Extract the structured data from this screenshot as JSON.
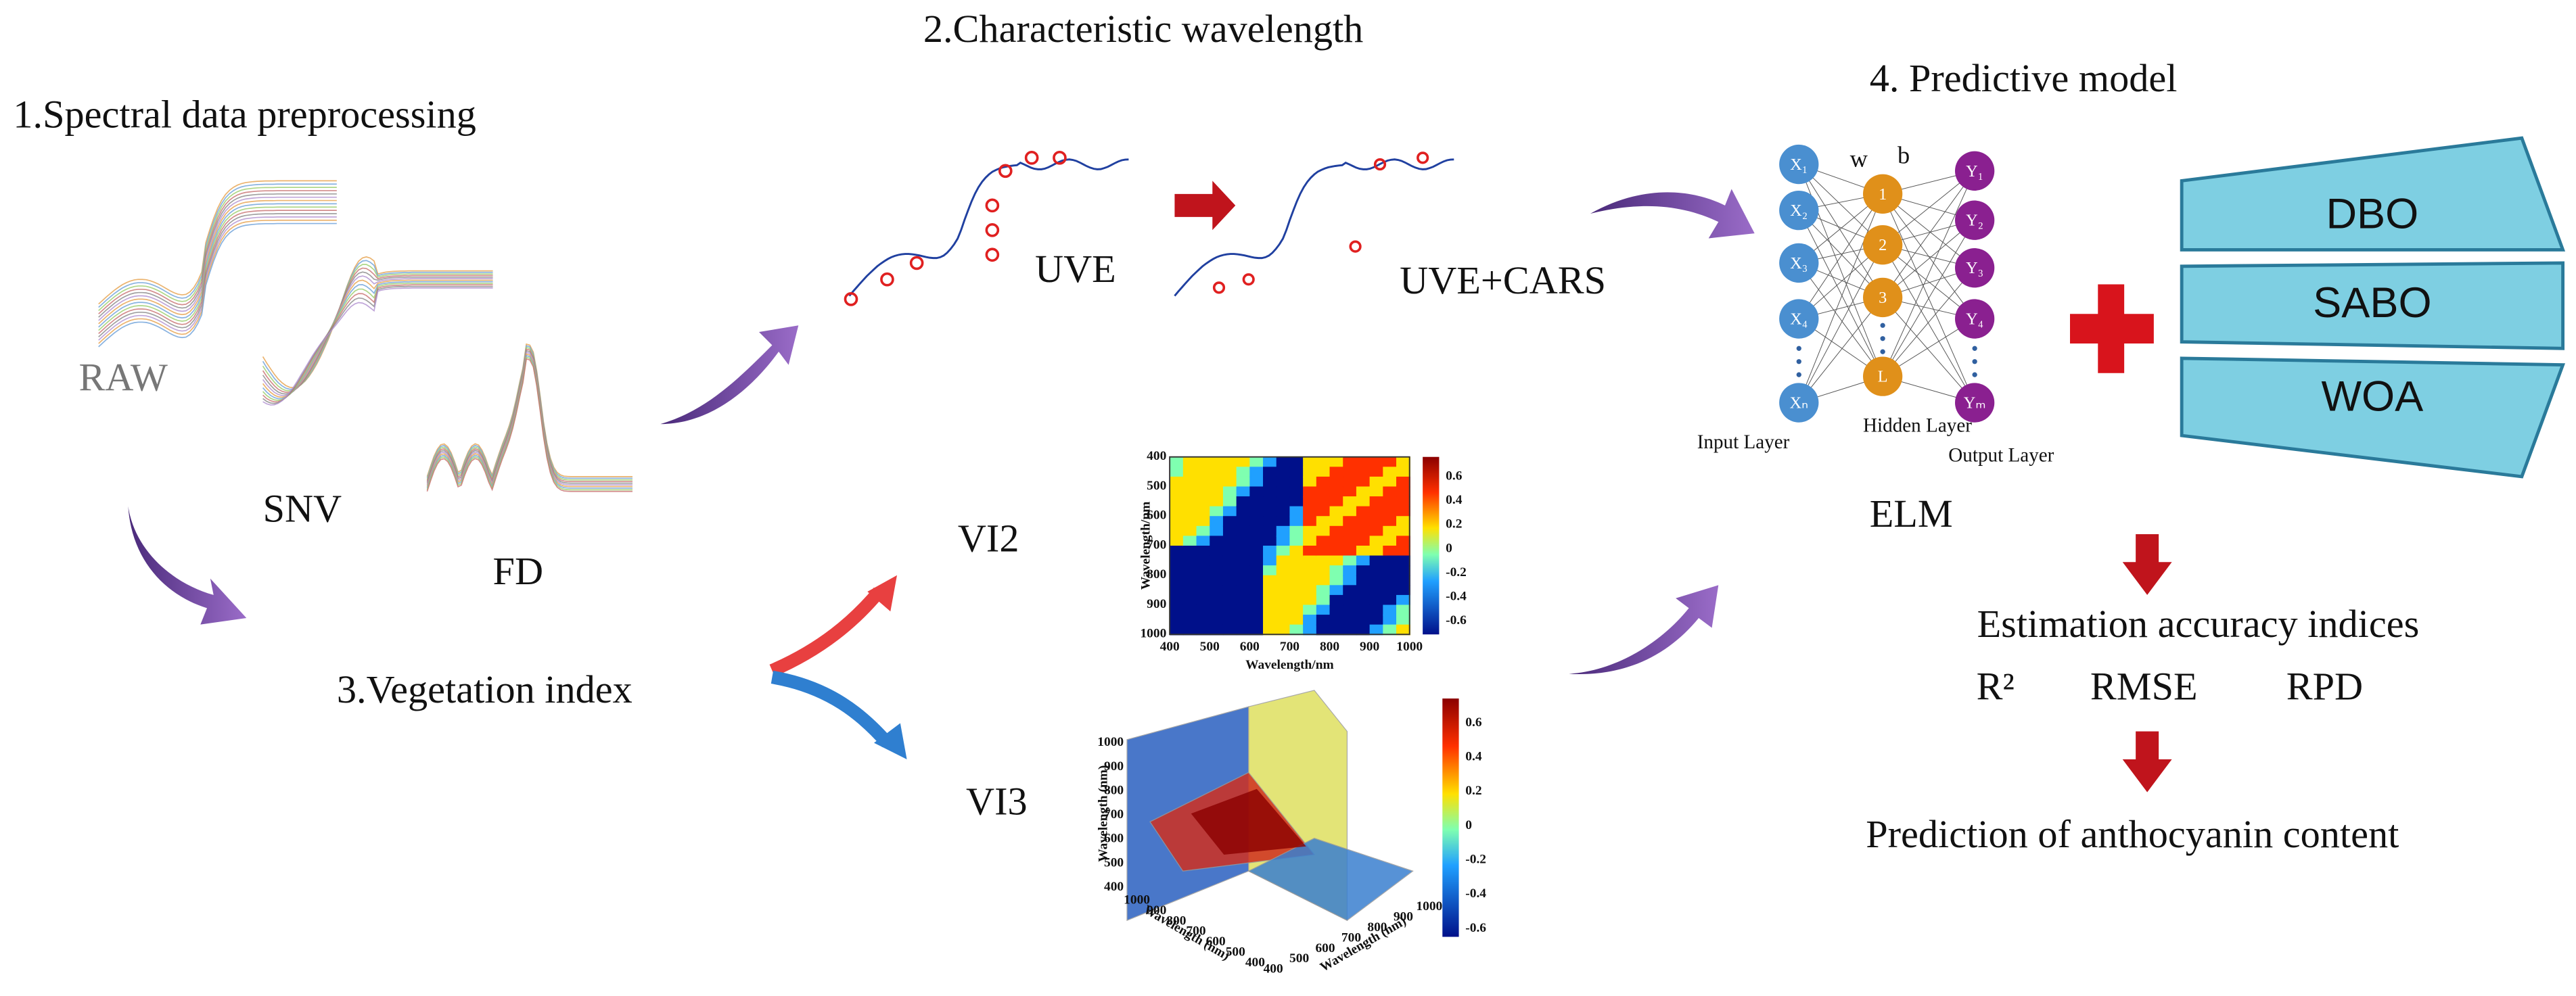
{
  "sections": {
    "preprocessing": "1.Spectral data preprocessing",
    "wavelength": "2.Characteristic wavelength",
    "vegetation": "3.Vegetation index",
    "model": "4. Predictive model"
  },
  "preprocessing": {
    "labels": [
      "RAW",
      "SNV",
      "FD"
    ]
  },
  "wavelength": {
    "labels": [
      "UVE",
      "UVE+CARS"
    ]
  },
  "vegetation": {
    "labels": [
      "VI2",
      "VI3"
    ]
  },
  "vi2_plot": {
    "y_label": "Wavelength/nm",
    "x_label": "Wavelength/nm",
    "y_ticks": [
      "400",
      "500",
      "600",
      "700",
      "800",
      "900",
      "1000"
    ],
    "x_ticks": [
      "400",
      "500",
      "600",
      "700",
      "800",
      "900",
      "1000"
    ],
    "colorbar_ticks": [
      "0.6",
      "0.4",
      "0.2",
      "0",
      "-0.2",
      "-0.4",
      "-0.6"
    ]
  },
  "vi3_plot": {
    "z_label": "Wavelength (nm)",
    "x_label": "Wavelength (nm)",
    "y_label": "Wavelength (nm)",
    "z_ticks": [
      "1000",
      "900",
      "800",
      "700",
      "600",
      "500",
      "400"
    ],
    "x_ticks": [
      "1000",
      "900",
      "800",
      "700",
      "600",
      "500",
      "400"
    ],
    "y_ticks": [
      "400",
      "500",
      "600",
      "700",
      "800",
      "900",
      "1000"
    ],
    "colorbar_ticks": [
      "0.6",
      "0.4",
      "0.2",
      "0",
      "-0.2",
      "-0.4",
      "-0.6"
    ]
  },
  "network": {
    "inputs": [
      "X₁",
      "X₂",
      "X₃",
      "X₄",
      "Xₙ"
    ],
    "hidden": [
      "1",
      "2",
      "3",
      "L"
    ],
    "outputs": [
      "Y₁",
      "Y₂",
      "Y₃",
      "Y₄",
      "Yₘ"
    ],
    "weights": [
      "w",
      "b"
    ],
    "layers": [
      "Input Layer",
      "Hidden Layer",
      "Output Layer"
    ],
    "name": "ELM"
  },
  "optimizers": [
    "DBO",
    "SABO",
    "WOA"
  ],
  "evaluation": {
    "title": "Estimation accuracy indices",
    "indices": [
      "R²",
      "RMSE",
      "RPD"
    ],
    "result": "Prediction of anthocyanin content"
  }
}
